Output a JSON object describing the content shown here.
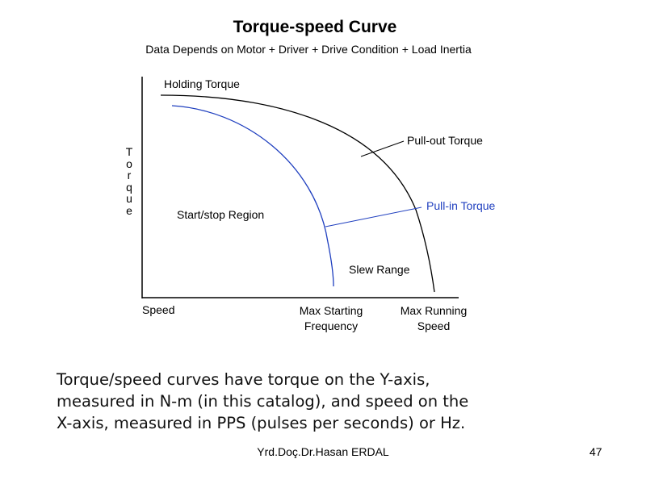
{
  "slide": {
    "title": "Torque-speed Curve",
    "subtitle": "Data Depends on Motor + Driver + Drive Condition + Load Inertia",
    "footer": "Yrd.Doç.Dr.Hasan ERDAL",
    "page_number": "47"
  },
  "diagram": {
    "y_axis_label": "Torque",
    "x_axis_labels": {
      "origin": "Speed",
      "max_start_line1": "Max Starting",
      "max_start_line2": "Frequency",
      "max_run_line1": "Max Running",
      "max_run_line2": "Speed"
    },
    "labels": {
      "holding_torque": "Holding Torque",
      "pull_out_torque": "Pull-out Torque",
      "pull_in_torque": "Pull-in Torque",
      "start_stop_region": "Start/stop Region",
      "slew_range": "Slew Range"
    },
    "colors": {
      "pull_out_curve": "#000000",
      "pull_in_curve": "#1f3fbf",
      "axes": "#000000"
    }
  },
  "caption": {
    "line1": "Torque/speed curves have torque on the Y-axis,",
    "line2": "measured in N-m (in this catalog), and speed on the",
    "line3": "X-axis, measured in PPS (pulses per seconds) or Hz."
  }
}
